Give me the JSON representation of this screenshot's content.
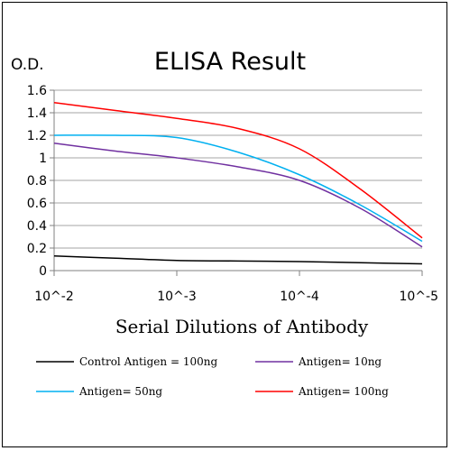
{
  "chart_data": {
    "type": "line",
    "title": "ELISA Result",
    "ylabel": "O.D.",
    "xlabel": "Serial Dilutions of Antibody",
    "x_scale": "log-decreasing",
    "x_ticks": [
      {
        "label": "10^-2",
        "exp": -2
      },
      {
        "label": "10^-3",
        "exp": -3
      },
      {
        "label": "10^-4",
        "exp": -4
      },
      {
        "label": "10^-5",
        "exp": -5
      }
    ],
    "y_ticks": [
      "0",
      "0.2",
      "0.4",
      "0.6",
      "0.8",
      "1",
      "1.2",
      "1.4",
      "1.6"
    ],
    "ylim": [
      0,
      1.6
    ],
    "grid": "horizontal",
    "legend_position": "bottom",
    "series": [
      {
        "name": "Control Antigen = 100ng",
        "color": "#000000",
        "points": [
          [
            -2,
            0.13
          ],
          [
            -2.5,
            0.11
          ],
          [
            -3,
            0.09
          ],
          [
            -3.5,
            0.085
          ],
          [
            -4,
            0.08
          ],
          [
            -4.5,
            0.07
          ],
          [
            -5,
            0.06
          ]
        ]
      },
      {
        "name": "Antigen= 10ng",
        "color": "#7030a0",
        "points": [
          [
            -2,
            1.13
          ],
          [
            -2.5,
            1.06
          ],
          [
            -3,
            1.0
          ],
          [
            -3.5,
            0.92
          ],
          [
            -4,
            0.8
          ],
          [
            -4.5,
            0.55
          ],
          [
            -5,
            0.21
          ]
        ]
      },
      {
        "name": "Antigen= 50ng",
        "color": "#00b0f0",
        "points": [
          [
            -2,
            1.2
          ],
          [
            -2.5,
            1.2
          ],
          [
            -3,
            1.18
          ],
          [
            -3.5,
            1.05
          ],
          [
            -4,
            0.85
          ],
          [
            -4.5,
            0.58
          ],
          [
            -5,
            0.26
          ]
        ]
      },
      {
        "name": "Antigen= 100ng",
        "color": "#ff0000",
        "points": [
          [
            -2,
            1.49
          ],
          [
            -2.5,
            1.42
          ],
          [
            -3,
            1.35
          ],
          [
            -3.5,
            1.26
          ],
          [
            -4,
            1.08
          ],
          [
            -4.5,
            0.72
          ],
          [
            -5,
            0.29
          ]
        ]
      }
    ]
  }
}
